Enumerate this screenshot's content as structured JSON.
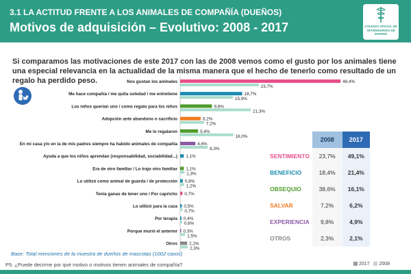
{
  "header": {
    "subtitle": "3.1 LA ACTITUD FRENTE A LOS ANIMALES DE COMPAÑÍA (DUEÑOS)",
    "title": "Motivos de adquisición – Evolutivo: 2008 - 2017",
    "logo_text": "COLEGIO OFICIAL DE VETERINARIOS DE MADRID"
  },
  "intro": "Si comparamos las motivaciones de este 2017 con las de 2008 vemos como el gusto por los animales tiene una especial relevancia en la actualidad de la misma manera que el hecho de tenerlo como resultado de un regalo  ha perdido peso.",
  "colors": {
    "header": "#2e9d86",
    "series_2008": "#aadccb"
  },
  "chart_data": {
    "type": "bar",
    "orientation": "horizontal",
    "series_names": [
      "2017",
      "2008"
    ],
    "categories": [
      {
        "label": "Nos gustan los animales",
        "v2017": 48.4,
        "v2008": 23.7,
        "color": "#e8508b"
      },
      {
        "label": "Me hace compañía / me quita soledad / me entretiene",
        "v2017": 18.7,
        "v2008": 15.9,
        "color": "#1b8bb0"
      },
      {
        "label": "Los niños querían uno / como regalo para los niños",
        "v2017": 9.6,
        "v2008": 21.3,
        "color": "#4f9c2c"
      },
      {
        "label": "Adopción ante abandono o sacrificio",
        "v2017": 6.2,
        "v2008": 7.2,
        "color": "#f07a22"
      },
      {
        "label": "Me lo regalaron",
        "v2017": 5.4,
        "v2008": 16.0,
        "color": "#4f9c2c"
      },
      {
        "label": "En mi casa y/o en la de mis padres siempre ha habido animales de compañía",
        "v2017": 4.6,
        "v2008": 8.3,
        "color": "#8b5aa6"
      },
      {
        "label": "Ayuda a que los niños aprendan (responsabilidad, sociabilidad...)",
        "v2017": 1.1,
        "v2008": null,
        "color": "#1b8bb0"
      },
      {
        "label": "Era de otro familiar / Lo trajo otro familiar",
        "v2017": 1.1,
        "v2008": 1.3,
        "color": "#4f9c2c"
      },
      {
        "label": "Lo utilizó como animal de guarda / de protección",
        "v2017": 0.8,
        "v2008": 1.2,
        "color": "#1b8bb0"
      },
      {
        "label": "Tenía ganas de tener uno / Por capricho",
        "v2017": 0.7,
        "v2008": null,
        "color": "#e8508b"
      },
      {
        "label": "Lo utilizó para la caza",
        "v2017": 0.5,
        "v2008": 0.7,
        "color": "#1b8bb0"
      },
      {
        "label": "Por terapia",
        "v2017": 0.4,
        "v2008": 0.6,
        "color": "#1b8bb0"
      },
      {
        "label": "Porque murió el anterior",
        "v2017": 0.3,
        "v2008": 1.5,
        "color": "#8b5aa6"
      },
      {
        "label": "Otros",
        "v2017": 2.1,
        "v2008": 2.3,
        "color": "#888888"
      }
    ],
    "xlim": [
      0,
      50
    ],
    "value_suffix": "%"
  },
  "summary": {
    "headers": [
      "2008",
      "2017"
    ],
    "rows": [
      {
        "label": "SENTIMIENTO",
        "v2008": "23,7%",
        "v2017": "49,1%",
        "color": "#e8508b"
      },
      {
        "label": "BENEFICIO",
        "v2008": "18,4%",
        "v2017": "21,4%",
        "color": "#1b8bb0"
      },
      {
        "label": "OBSEQUIO",
        "v2008": "38,6%",
        "v2017": "16,1%",
        "color": "#4f9c2c"
      },
      {
        "label": "SALVAR",
        "v2008": "7,2%",
        "v2017": "6,2%",
        "color": "#f07a22"
      },
      {
        "label": "EXPERIENCIA",
        "v2008": "9,8%",
        "v2017": "4,9%",
        "color": "#8b5aa6"
      },
      {
        "label": "OTROS",
        "v2008": "2,3%",
        "v2017": "2,1%",
        "color": "#888888"
      }
    ]
  },
  "base": "Base: Total menciones de la muestra de dueños de mascotas (1002 casos)",
  "question": "P5. ¿Puede decirme por qué motivo o motivos tienen animales de compañía?",
  "legend": {
    "label_2017": "2017",
    "label_2008": "2008"
  }
}
